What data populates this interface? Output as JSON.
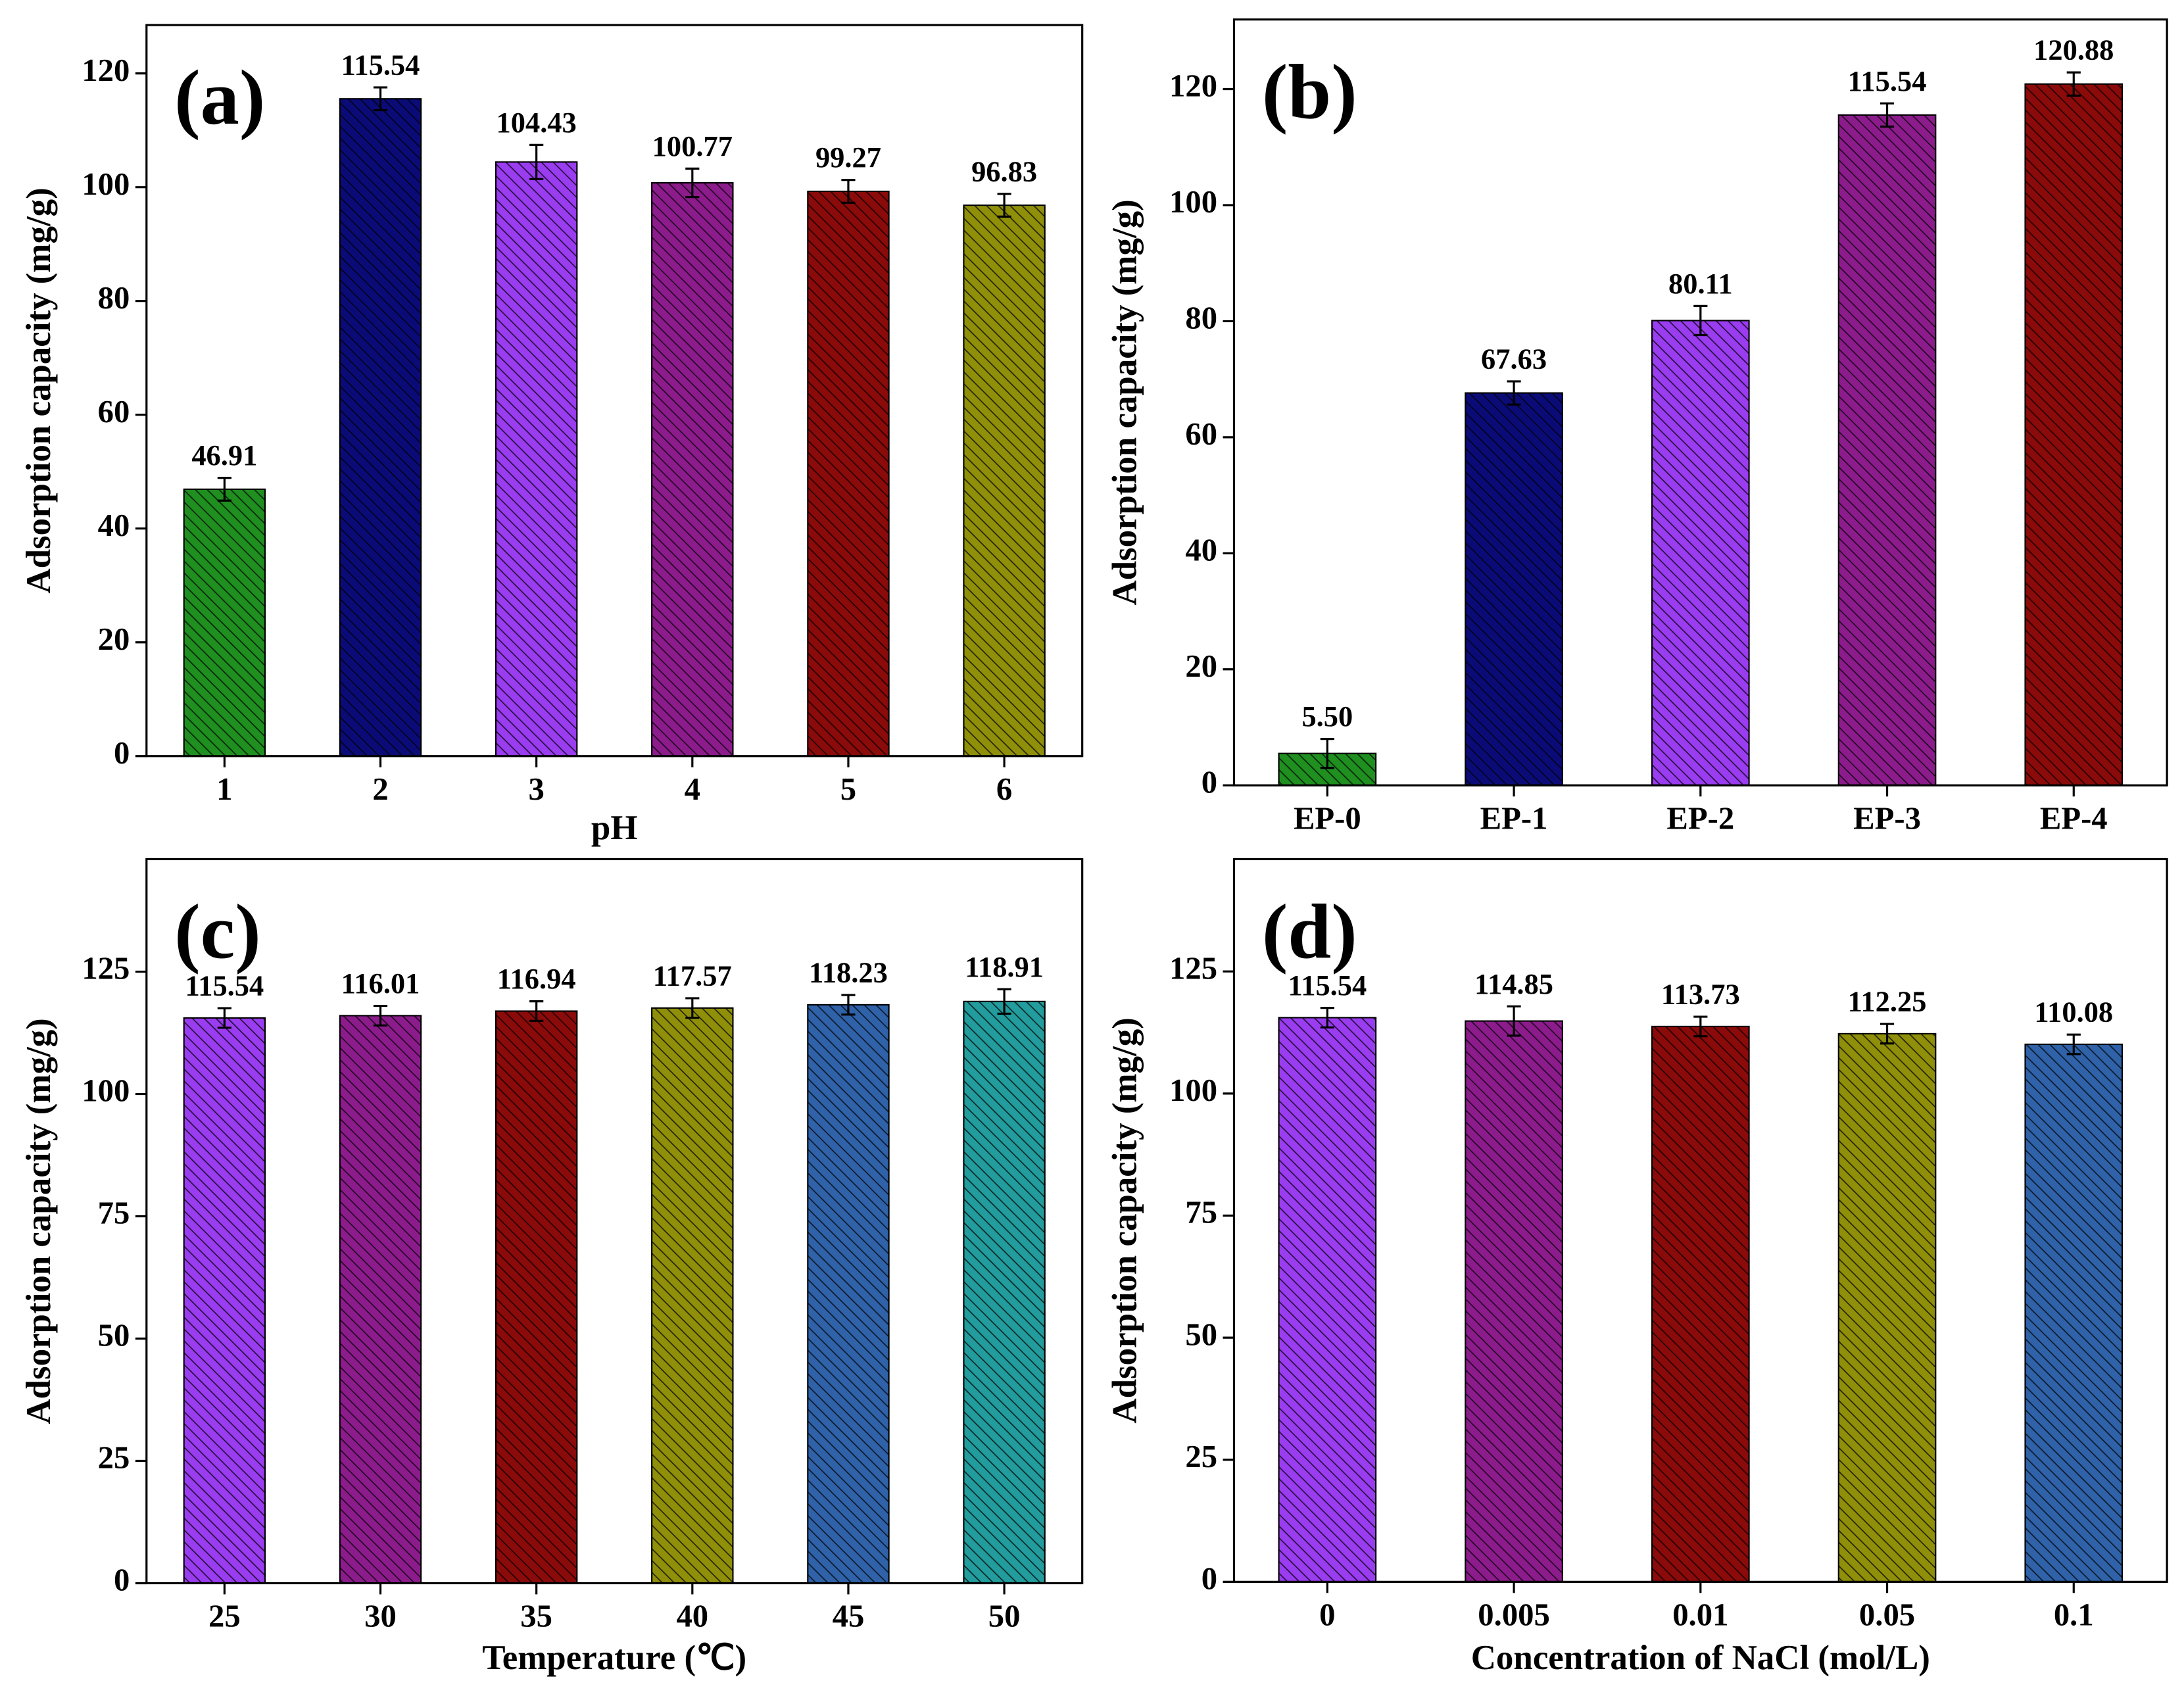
{
  "chart_data": [
    {
      "type": "bar",
      "panel_label": "(a)",
      "xlabel": "pH",
      "ylabel": "Adsorption capacity (mg/g)",
      "categories": [
        "1",
        "2",
        "3",
        "4",
        "5",
        "6"
      ],
      "values": [
        46.91,
        115.54,
        104.43,
        100.77,
        99.27,
        96.83
      ],
      "value_labels": [
        "46.91",
        "115.54",
        "104.43",
        "100.77",
        "99.27",
        "96.83"
      ],
      "errors": [
        2,
        2,
        3,
        2.5,
        2,
        2
      ],
      "colors": [
        "#1f8f1f",
        "#0b0b78",
        "#9a3cf0",
        "#8c1c8c",
        "#8b0a0a",
        "#8f8f0a"
      ],
      "ylim": [
        0,
        128.5
      ],
      "yticks": [
        0,
        20,
        40,
        60,
        80,
        100,
        120
      ]
    },
    {
      "type": "bar",
      "panel_label": "(b)",
      "ylabel": "Adsorption capacity (mg/g)",
      "categories": [
        "EP-0",
        "EP-1",
        "EP-2",
        "EP-3",
        "EP-4"
      ],
      "values": [
        5.5,
        67.63,
        80.11,
        115.54,
        120.88
      ],
      "value_labels": [
        "5.50",
        "67.63",
        "80.11",
        "115.54",
        "120.88"
      ],
      "errors": [
        2.5,
        2,
        2.5,
        2,
        2
      ],
      "colors": [
        "#1f8f1f",
        "#0b0b78",
        "#9a3cf0",
        "#8c1c8c",
        "#8b0a0a"
      ],
      "ylim": [
        0,
        132
      ],
      "yticks": [
        0,
        20,
        40,
        60,
        80,
        100,
        120
      ]
    },
    {
      "type": "bar",
      "panel_label": "(c)",
      "xlabel": "Temperature (℃)",
      "ylabel": "Adsorption capacity (mg/g)",
      "categories": [
        "25",
        "30",
        "35",
        "40",
        "45",
        "50"
      ],
      "values": [
        115.54,
        116.01,
        116.94,
        117.57,
        118.23,
        118.91
      ],
      "value_labels": [
        "115.54",
        "116.01",
        "116.94",
        "117.57",
        "118.23",
        "118.91"
      ],
      "errors": [
        2,
        2,
        2,
        2,
        2,
        2.5
      ],
      "colors": [
        "#9a3cf0",
        "#8c1c8c",
        "#8b0a0a",
        "#8f8f0a",
        "#2f62a8",
        "#229c9c"
      ],
      "ylim": [
        0,
        148
      ],
      "yticks": [
        0,
        25,
        50,
        75,
        100,
        125
      ]
    },
    {
      "type": "bar",
      "panel_label": "(d)",
      "xlabel": "Concentration of NaCl (mol/L)",
      "ylabel": "Adsorption capacity (mg/g)",
      "categories": [
        "0",
        "0.005",
        "0.01",
        "0.05",
        "0.1"
      ],
      "values": [
        115.54,
        114.85,
        113.73,
        112.25,
        110.08
      ],
      "value_labels": [
        "115.54",
        "114.85",
        "113.73",
        "112.25",
        "110.08"
      ],
      "errors": [
        2,
        3,
        2,
        2,
        2
      ],
      "colors": [
        "#9a3cf0",
        "#8c1c8c",
        "#8b0a0a",
        "#8f8f0a",
        "#2f62a8"
      ],
      "ylim": [
        0,
        148
      ],
      "yticks": [
        0,
        25,
        50,
        75,
        100,
        125
      ]
    }
  ]
}
